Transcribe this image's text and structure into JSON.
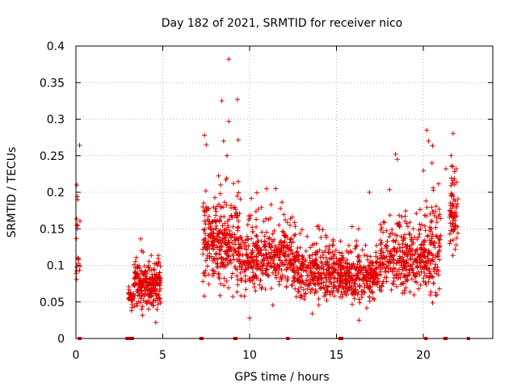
{
  "chart_data": {
    "type": "scatter",
    "title": "Day 182 of 2021, SRMTID for receiver nico",
    "xlabel": "GPS time / hours",
    "ylabel": "SRMTID / TECUs",
    "xlim": [
      0,
      24
    ],
    "ylim": [
      0,
      0.4
    ],
    "x_ticks": [
      0,
      5,
      10,
      15,
      20
    ],
    "x_tick_labels": [
      "0",
      "5",
      "10",
      "15",
      "20"
    ],
    "y_ticks": [
      0,
      0.05,
      0.1,
      0.15,
      0.2,
      0.25,
      0.3,
      0.35,
      0.4
    ],
    "y_tick_labels": [
      "0",
      "0.05",
      "0.1",
      "0.15",
      "0.2",
      "0.25",
      "0.3",
      "0.35",
      "0.4"
    ],
    "grid": true,
    "marker": "+",
    "series": [
      {
        "name": "SRMTID",
        "color": "#e00000",
        "segments": [
          {
            "x_start": 0.0,
            "x_end": 0.25,
            "y_center": 0.12,
            "spread": 0.05,
            "count": 18
          },
          {
            "x_start": 3.0,
            "x_end": 3.35,
            "y_center": 0.055,
            "spread": 0.015,
            "count": 30
          },
          {
            "x_start": 3.35,
            "x_end": 4.9,
            "y_center": 0.075,
            "spread": 0.022,
            "count": 240
          },
          {
            "x_start": 7.3,
            "x_end": 9.5,
            "y_center": 0.13,
            "spread": 0.04,
            "count": 320
          },
          {
            "x_start": 9.5,
            "x_end": 12.5,
            "y_center": 0.11,
            "spread": 0.03,
            "count": 360
          },
          {
            "x_start": 12.5,
            "x_end": 15.2,
            "y_center": 0.09,
            "spread": 0.025,
            "count": 330
          },
          {
            "x_start": 15.2,
            "x_end": 17.5,
            "y_center": 0.085,
            "spread": 0.022,
            "count": 300
          },
          {
            "x_start": 17.5,
            "x_end": 20.4,
            "y_center": 0.11,
            "spread": 0.03,
            "count": 360
          },
          {
            "x_start": 20.4,
            "x_end": 21.0,
            "y_center": 0.12,
            "spread": 0.04,
            "count": 80
          },
          {
            "x_start": 21.5,
            "x_end": 22.0,
            "y_center": 0.17,
            "spread": 0.035,
            "count": 70
          }
        ],
        "highlights": [
          {
            "x": 0.05,
            "y": 0.21
          },
          {
            "x": 0.1,
            "y": 0.19
          },
          {
            "x": 8.8,
            "y": 0.382
          },
          {
            "x": 8.4,
            "y": 0.325
          },
          {
            "x": 9.3,
            "y": 0.327
          },
          {
            "x": 8.8,
            "y": 0.297
          },
          {
            "x": 7.4,
            "y": 0.278
          },
          {
            "x": 8.5,
            "y": 0.27
          },
          {
            "x": 8.7,
            "y": 0.25
          },
          {
            "x": 7.5,
            "y": 0.265
          },
          {
            "x": 20.2,
            "y": 0.285
          },
          {
            "x": 20.3,
            "y": 0.27
          },
          {
            "x": 20.5,
            "y": 0.24
          },
          {
            "x": 18.4,
            "y": 0.252
          },
          {
            "x": 18.5,
            "y": 0.245
          },
          {
            "x": 21.7,
            "y": 0.235
          },
          {
            "x": 21.9,
            "y": 0.232
          },
          {
            "x": 21.3,
            "y": 0.232
          },
          {
            "x": 11.5,
            "y": 0.205
          },
          {
            "x": 16.9,
            "y": 0.2
          },
          {
            "x": 4.6,
            "y": 0.022
          },
          {
            "x": 10.0,
            "y": 0.028
          },
          {
            "x": 16.3,
            "y": 0.025
          }
        ],
        "zero_points": [
          0.2,
          0.22,
          2.95,
          3.05,
          3.2,
          3.25,
          7.2,
          7.25,
          9.15,
          9.2,
          12.2,
          15.2,
          15.3,
          20.15,
          21.25,
          21.3,
          22.6
        ]
      }
    ]
  }
}
